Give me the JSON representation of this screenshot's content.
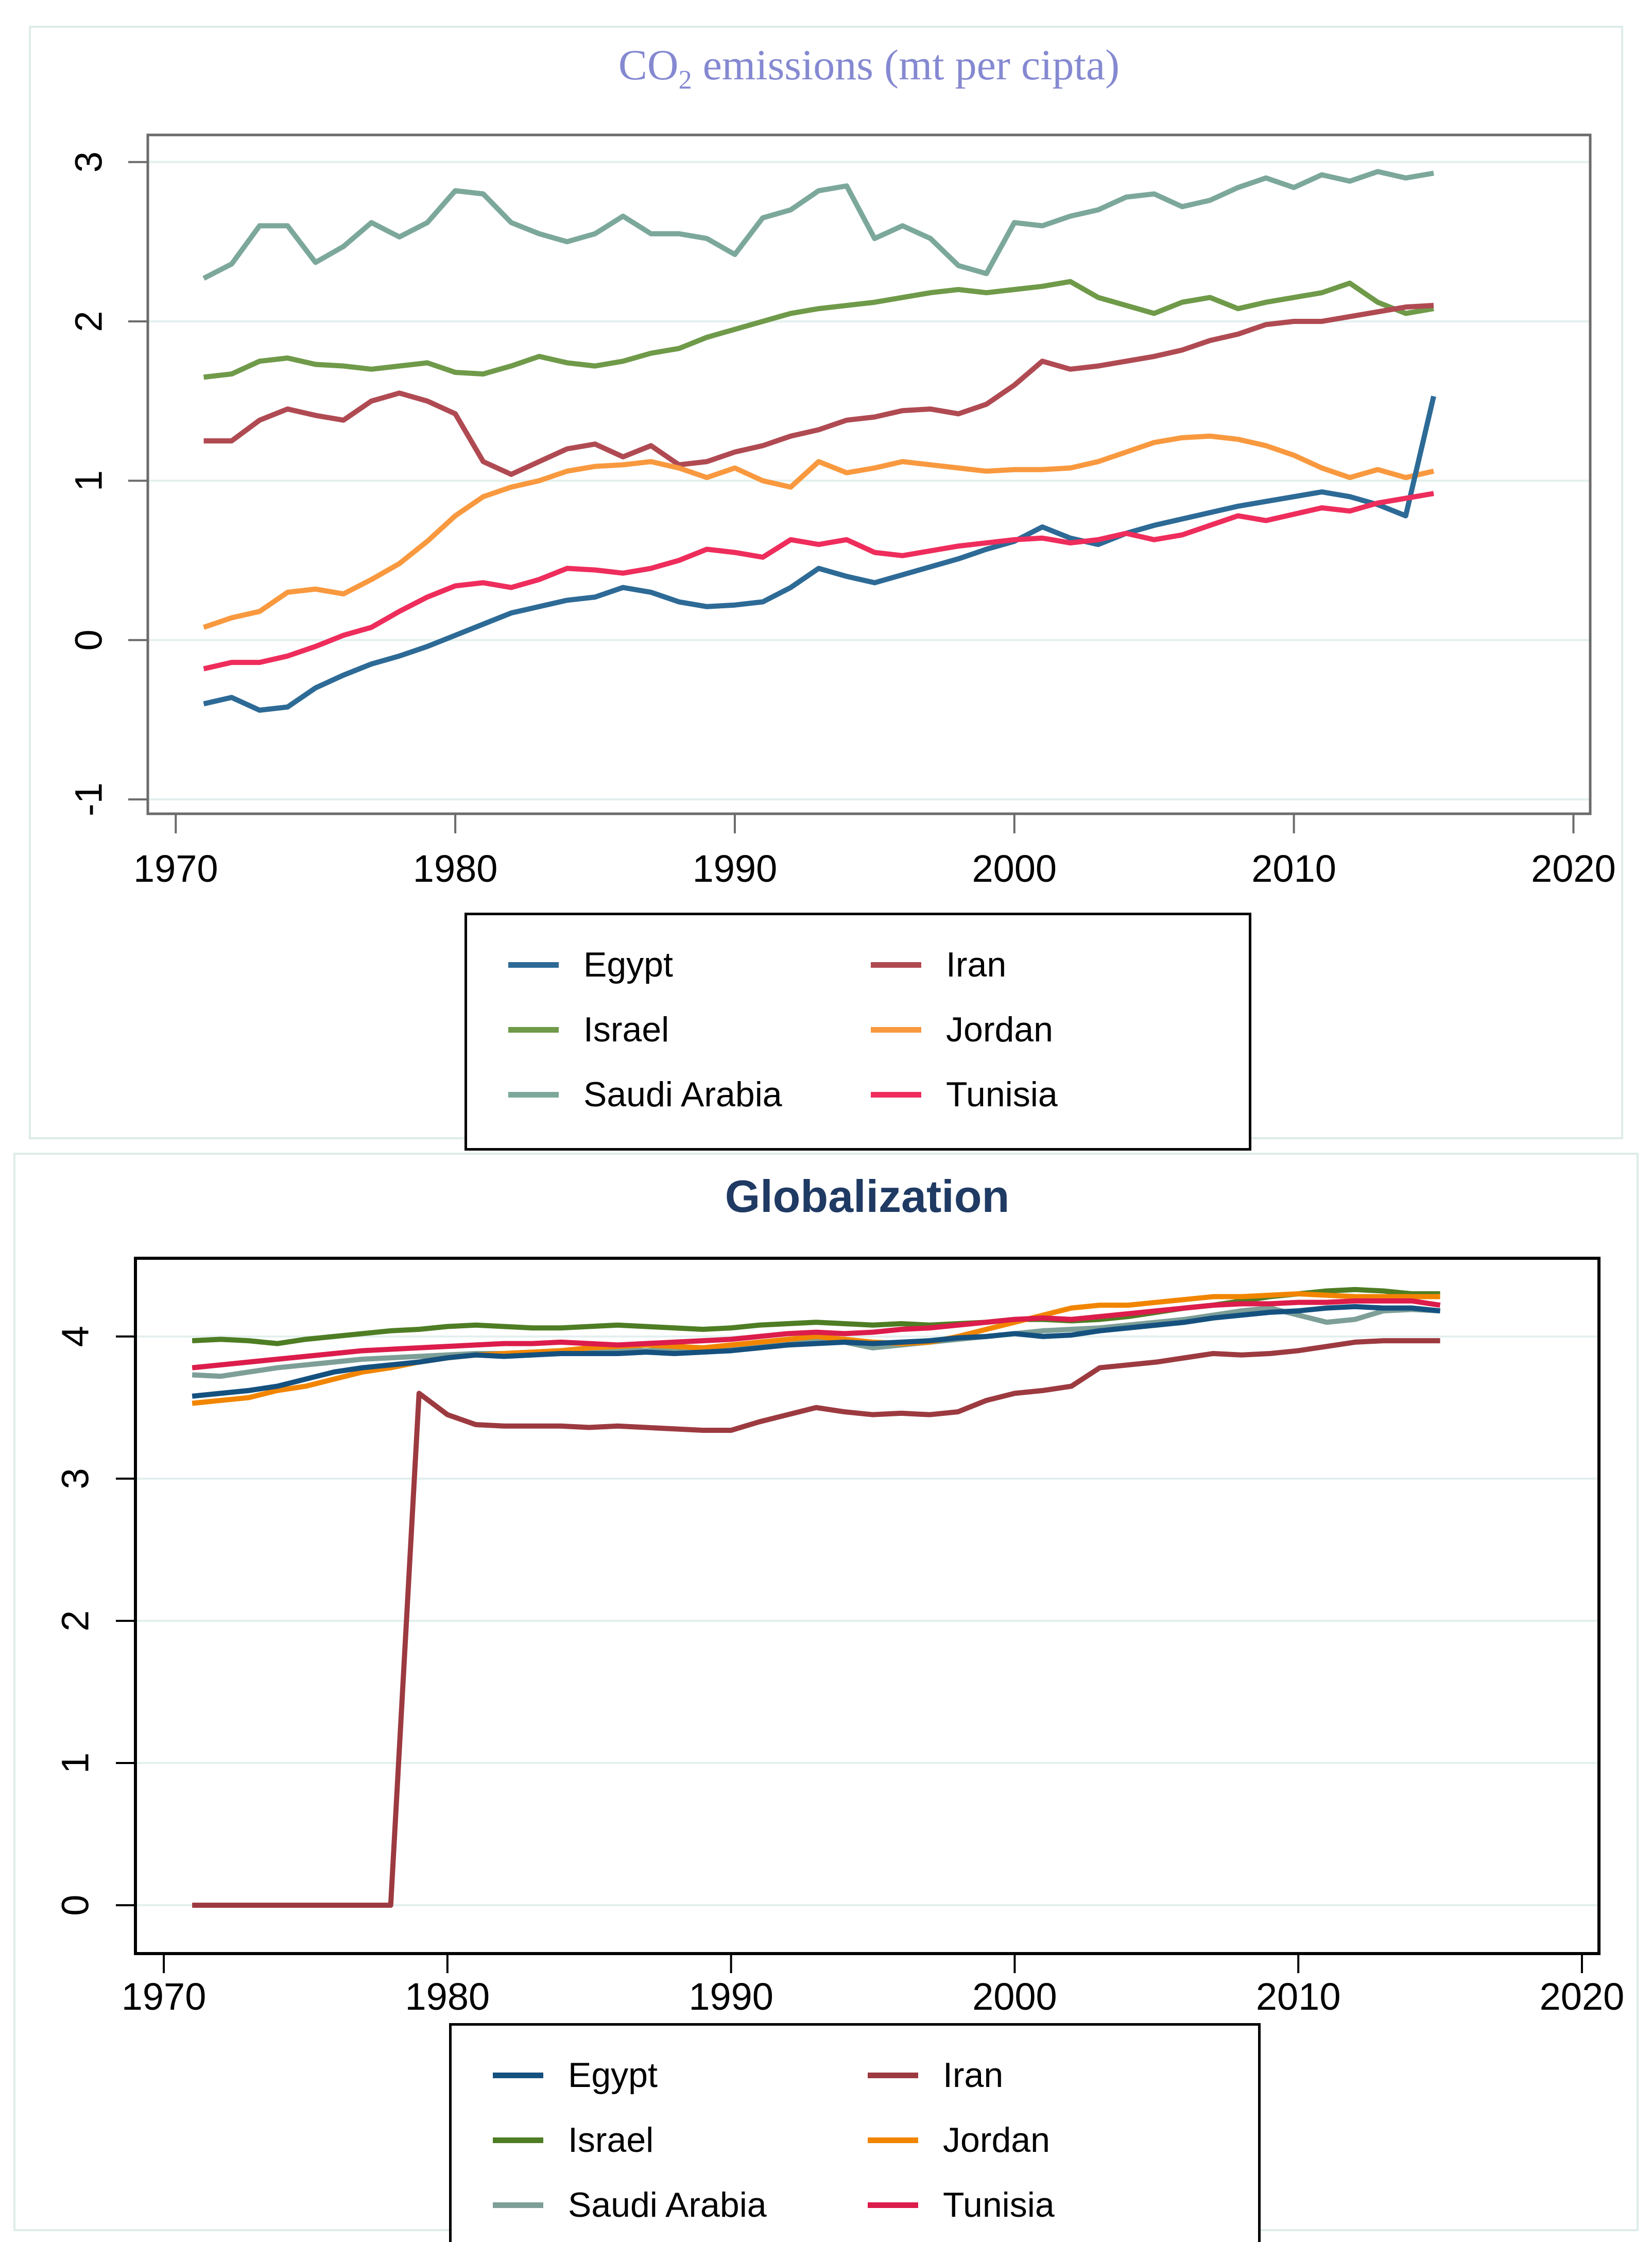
{
  "panels": [
    {
      "title_co": "CO",
      "title_sub": "2",
      "title_rest": " emissions (mt per cipta)",
      "title_color": "#8589d1"
    },
    {
      "title": "Globalization",
      "title_color": "#1f3a63"
    }
  ],
  "chart_data": [
    {
      "type": "line",
      "title": "CO2 emissions (mt per cipta)",
      "xlabel": "",
      "ylabel": "",
      "legend_position": "bottom",
      "grid": true,
      "xlim": [
        1969,
        2020.6
      ],
      "ylim": [
        -1.09,
        3.17
      ],
      "x_ticks": [
        1970,
        1980,
        1990,
        2000,
        2010,
        2020
      ],
      "y_ticks": [
        -1,
        0,
        1,
        2,
        3
      ],
      "x": [
        1971,
        1972,
        1973,
        1974,
        1975,
        1976,
        1977,
        1978,
        1979,
        1980,
        1981,
        1982,
        1983,
        1984,
        1985,
        1986,
        1987,
        1988,
        1989,
        1990,
        1991,
        1992,
        1993,
        1994,
        1995,
        1996,
        1997,
        1998,
        1999,
        2000,
        2001,
        2002,
        2003,
        2004,
        2005,
        2006,
        2007,
        2008,
        2009,
        2010,
        2011,
        2012,
        2013,
        2014,
        2015
      ],
      "series": [
        {
          "name": "Egypt",
          "color": "#2d6a96",
          "values": [
            -0.4,
            -0.36,
            -0.44,
            -0.42,
            -0.3,
            -0.22,
            -0.15,
            -0.1,
            -0.04,
            0.03,
            0.1,
            0.17,
            0.21,
            0.25,
            0.27,
            0.33,
            0.3,
            0.24,
            0.21,
            0.22,
            0.24,
            0.33,
            0.45,
            0.4,
            0.36,
            0.41,
            0.46,
            0.51,
            0.57,
            0.62,
            0.71,
            0.64,
            0.6,
            0.67,
            0.72,
            0.76,
            0.8,
            0.84,
            0.87,
            0.9,
            0.93,
            0.9,
            0.85,
            0.78,
            1.53
          ]
        },
        {
          "name": "Iran",
          "color": "#b04a52",
          "values": [
            1.25,
            1.25,
            1.38,
            1.45,
            1.41,
            1.38,
            1.5,
            1.55,
            1.5,
            1.42,
            1.12,
            1.04,
            1.12,
            1.2,
            1.23,
            1.15,
            1.22,
            1.1,
            1.12,
            1.18,
            1.22,
            1.28,
            1.32,
            1.38,
            1.4,
            1.44,
            1.45,
            1.42,
            1.48,
            1.6,
            1.75,
            1.7,
            1.72,
            1.75,
            1.78,
            1.82,
            1.88,
            1.92,
            1.98,
            2.0,
            2.0,
            2.03,
            2.06,
            2.09,
            2.1
          ]
        },
        {
          "name": "Israel",
          "color": "#6f9a49",
          "values": [
            1.65,
            1.67,
            1.75,
            1.77,
            1.73,
            1.72,
            1.7,
            1.72,
            1.74,
            1.68,
            1.67,
            1.72,
            1.78,
            1.74,
            1.72,
            1.75,
            1.8,
            1.83,
            1.9,
            1.95,
            2.0,
            2.05,
            2.08,
            2.1,
            2.12,
            2.15,
            2.18,
            2.2,
            2.18,
            2.2,
            2.22,
            2.25,
            2.15,
            2.1,
            2.05,
            2.12,
            2.15,
            2.08,
            2.12,
            2.15,
            2.18,
            2.24,
            2.12,
            2.05,
            2.08
          ]
        },
        {
          "name": "Jordan",
          "color": "#f9993f",
          "values": [
            0.08,
            0.14,
            0.18,
            0.3,
            0.32,
            0.29,
            0.38,
            0.48,
            0.62,
            0.78,
            0.9,
            0.96,
            1.0,
            1.06,
            1.09,
            1.1,
            1.12,
            1.08,
            1.02,
            1.08,
            1.0,
            0.96,
            1.12,
            1.05,
            1.08,
            1.12,
            1.1,
            1.08,
            1.06,
            1.07,
            1.07,
            1.08,
            1.12,
            1.18,
            1.24,
            1.27,
            1.28,
            1.26,
            1.22,
            1.16,
            1.08,
            1.02,
            1.07,
            1.02,
            1.06
          ]
        },
        {
          "name": "Saudi Arabia",
          "color": "#7ca89b",
          "values": [
            2.27,
            2.36,
            2.6,
            2.6,
            2.37,
            2.47,
            2.62,
            2.53,
            2.62,
            2.82,
            2.8,
            2.62,
            2.55,
            2.5,
            2.55,
            2.66,
            2.55,
            2.55,
            2.52,
            2.42,
            2.65,
            2.7,
            2.82,
            2.85,
            2.52,
            2.6,
            2.52,
            2.35,
            2.3,
            2.62,
            2.6,
            2.66,
            2.7,
            2.78,
            2.8,
            2.72,
            2.76,
            2.84,
            2.9,
            2.84,
            2.92,
            2.88,
            2.94,
            2.9,
            2.93
          ]
        },
        {
          "name": "Tunisia",
          "color": "#ee2d5c",
          "values": [
            -0.18,
            -0.14,
            -0.14,
            -0.1,
            -0.04,
            0.03,
            0.08,
            0.18,
            0.27,
            0.34,
            0.36,
            0.33,
            0.38,
            0.45,
            0.44,
            0.42,
            0.45,
            0.5,
            0.57,
            0.55,
            0.52,
            0.63,
            0.6,
            0.63,
            0.55,
            0.53,
            0.56,
            0.59,
            0.61,
            0.63,
            0.64,
            0.61,
            0.63,
            0.67,
            0.63,
            0.66,
            0.72,
            0.78,
            0.75,
            0.79,
            0.83,
            0.81,
            0.86,
            0.89,
            0.92
          ]
        }
      ]
    },
    {
      "type": "line",
      "title": "Globalization",
      "xlabel": "",
      "ylabel": "",
      "legend_position": "bottom",
      "grid": true,
      "xlim": [
        1969,
        2020.6
      ],
      "ylim": [
        -0.34,
        4.55
      ],
      "x_ticks": [
        1970,
        1980,
        1990,
        2000,
        2010,
        2020
      ],
      "y_ticks": [
        0,
        1,
        2,
        3,
        4
      ],
      "x": [
        1971,
        1972,
        1973,
        1974,
        1975,
        1976,
        1977,
        1978,
        1979,
        1980,
        1981,
        1982,
        1983,
        1984,
        1985,
        1986,
        1987,
        1988,
        1989,
        1990,
        1991,
        1992,
        1993,
        1994,
        1995,
        1996,
        1997,
        1998,
        1999,
        2000,
        2001,
        2002,
        2003,
        2004,
        2005,
        2006,
        2007,
        2008,
        2009,
        2010,
        2011,
        2012,
        2013,
        2014,
        2015
      ],
      "series": [
        {
          "name": "Egypt",
          "color": "#15517f",
          "values": [
            3.58,
            3.6,
            3.62,
            3.65,
            3.7,
            3.75,
            3.78,
            3.8,
            3.82,
            3.85,
            3.87,
            3.86,
            3.87,
            3.88,
            3.88,
            3.88,
            3.89,
            3.88,
            3.89,
            3.9,
            3.92,
            3.94,
            3.95,
            3.96,
            3.95,
            3.96,
            3.97,
            3.99,
            4.0,
            4.02,
            4.0,
            4.01,
            4.04,
            4.06,
            4.08,
            4.1,
            4.13,
            4.15,
            4.17,
            4.18,
            4.2,
            4.21,
            4.2,
            4.2,
            4.18
          ]
        },
        {
          "name": "Iran",
          "color": "#9c3a40",
          "values": [
            0,
            0,
            0,
            0,
            0,
            0,
            0,
            0,
            3.6,
            3.45,
            3.38,
            3.37,
            3.37,
            3.37,
            3.36,
            3.37,
            3.36,
            3.35,
            3.34,
            3.34,
            3.4,
            3.45,
            3.5,
            3.47,
            3.45,
            3.46,
            3.45,
            3.47,
            3.55,
            3.6,
            3.62,
            3.65,
            3.78,
            3.8,
            3.82,
            3.85,
            3.88,
            3.87,
            3.88,
            3.9,
            3.93,
            3.96,
            3.97,
            3.97,
            3.97
          ]
        },
        {
          "name": "Israel",
          "color": "#4e7d24",
          "values": [
            3.97,
            3.98,
            3.97,
            3.95,
            3.98,
            4.0,
            4.02,
            4.04,
            4.05,
            4.07,
            4.08,
            4.07,
            4.06,
            4.06,
            4.07,
            4.08,
            4.07,
            4.06,
            4.05,
            4.06,
            4.08,
            4.09,
            4.1,
            4.09,
            4.08,
            4.09,
            4.08,
            4.09,
            4.1,
            4.12,
            4.12,
            4.11,
            4.12,
            4.14,
            4.17,
            4.2,
            4.22,
            4.25,
            4.28,
            4.3,
            4.32,
            4.33,
            4.32,
            4.3,
            4.3
          ]
        },
        {
          "name": "Jordan",
          "color": "#f28500",
          "values": [
            3.53,
            3.55,
            3.57,
            3.62,
            3.65,
            3.7,
            3.75,
            3.78,
            3.82,
            3.85,
            3.87,
            3.88,
            3.89,
            3.9,
            3.92,
            3.93,
            3.94,
            3.93,
            3.92,
            3.94,
            3.96,
            3.98,
            4.0,
            3.98,
            3.96,
            3.95,
            3.96,
            4.0,
            4.05,
            4.1,
            4.15,
            4.2,
            4.22,
            4.22,
            4.24,
            4.26,
            4.28,
            4.28,
            4.29,
            4.3,
            4.29,
            4.28,
            4.28,
            4.28,
            4.28
          ]
        },
        {
          "name": "Saudi Arabia",
          "color": "#7d9f97",
          "values": [
            3.73,
            3.72,
            3.75,
            3.78,
            3.8,
            3.82,
            3.84,
            3.85,
            3.86,
            3.87,
            3.88,
            3.88,
            3.89,
            3.9,
            3.9,
            3.91,
            3.9,
            3.91,
            3.92,
            3.93,
            3.95,
            3.97,
            3.98,
            3.96,
            3.92,
            3.94,
            3.96,
            3.98,
            4.0,
            4.02,
            4.04,
            4.05,
            4.06,
            4.08,
            4.1,
            4.12,
            4.15,
            4.18,
            4.2,
            4.15,
            4.1,
            4.12,
            4.18,
            4.19,
            4.18
          ]
        },
        {
          "name": "Tunisia",
          "color": "#dc1c4b",
          "values": [
            3.78,
            3.8,
            3.82,
            3.84,
            3.86,
            3.88,
            3.9,
            3.91,
            3.92,
            3.93,
            3.94,
            3.95,
            3.95,
            3.96,
            3.95,
            3.94,
            3.95,
            3.96,
            3.97,
            3.98,
            4.0,
            4.02,
            4.03,
            4.02,
            4.03,
            4.05,
            4.06,
            4.08,
            4.1,
            4.12,
            4.13,
            4.12,
            4.14,
            4.16,
            4.18,
            4.2,
            4.22,
            4.23,
            4.23,
            4.24,
            4.24,
            4.25,
            4.25,
            4.25,
            4.22
          ]
        }
      ]
    }
  ]
}
